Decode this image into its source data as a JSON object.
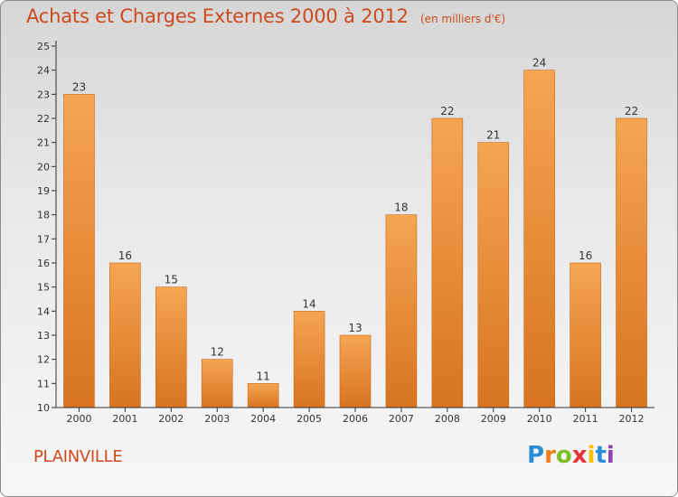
{
  "header": {
    "title": "Achats et Charges Externes 2000 à 2012",
    "unit": "(en milliers d'€)"
  },
  "footer": {
    "city": "PLAINVILLE",
    "logo": {
      "letters": [
        "P",
        "r",
        "o",
        "x",
        "i",
        "t",
        "i"
      ],
      "colors": [
        "#2a8fd6",
        "#f07d1a",
        "#7cbf2a",
        "#e6363a",
        "#f5c200",
        "#2a8fd6",
        "#8e44ad"
      ]
    }
  },
  "colors": {
    "bar_top": "#f5a553",
    "bar_bottom": "#d87420",
    "axis": "#333333",
    "title": "#cc4a1e"
  },
  "chart_data": {
    "type": "bar",
    "title": "Achats et Charges Externes 2000 à 2012",
    "xlabel": "",
    "ylabel": "",
    "categories": [
      "2000",
      "2001",
      "2002",
      "2003",
      "2004",
      "2005",
      "2006",
      "2007",
      "2008",
      "2009",
      "2010",
      "2011",
      "2012"
    ],
    "values": [
      23,
      16,
      15,
      12,
      11,
      14,
      13,
      18,
      22,
      21,
      24,
      16,
      22
    ],
    "ylim": [
      10,
      25
    ],
    "yticks": [
      10,
      11,
      12,
      13,
      14,
      15,
      16,
      17,
      18,
      19,
      20,
      21,
      22,
      23,
      24,
      25
    ],
    "grid": false,
    "legend": "none"
  }
}
